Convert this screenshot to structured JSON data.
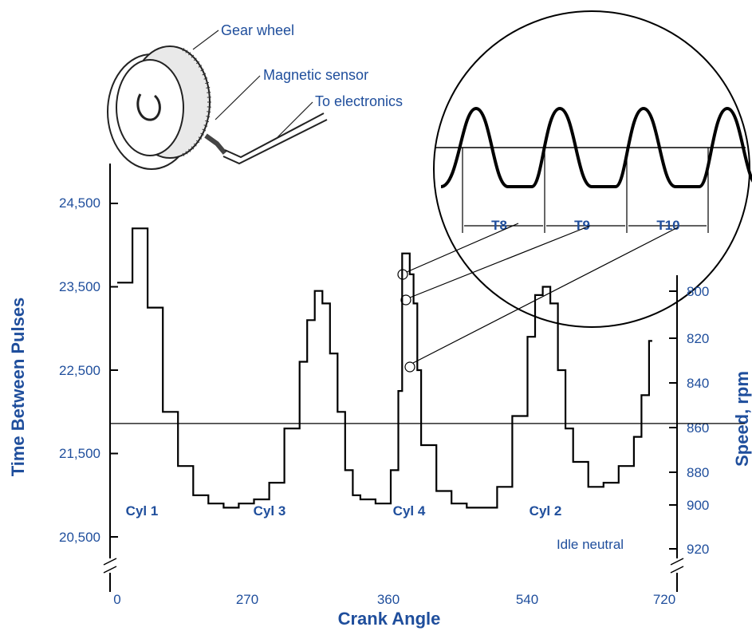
{
  "chart_data": {
    "type": "line",
    "xlabel": "Crank Angle",
    "ylabel": "Time Between Pulses",
    "y2label": "Speed, rpm",
    "x_ticks": [
      "0",
      "270",
      "360",
      "540",
      "720"
    ],
    "y_ticks": [
      "24,500",
      "23,500",
      "22,500",
      "21,500",
      "20,500"
    ],
    "y2_ticks": [
      "800",
      "820",
      "840",
      "860",
      "880",
      "900",
      "920"
    ],
    "cylinder_labels": [
      "Cyl 1",
      "Cyl 3",
      "Cyl 4",
      "Cyl 2"
    ],
    "note": "Idle neutral",
    "callouts": {
      "gear": "Gear wheel",
      "sensor": "Magnetic sensor",
      "electronics": "To electronics"
    },
    "pulse_labels": [
      "T8",
      "T9",
      "T10"
    ],
    "mean_line_y": 21860,
    "series": [
      {
        "x": [
          0,
          20,
          40,
          60,
          80,
          100,
          120,
          140,
          160,
          180,
          200,
          220,
          240,
          250,
          260,
          270,
          280,
          290,
          300,
          310,
          320,
          330,
          340,
          360,
          370,
          375,
          385,
          390,
          395,
          400,
          420,
          440,
          460,
          480,
          500,
          520,
          540,
          550,
          560,
          570,
          580,
          590,
          600,
          620,
          640,
          660,
          680,
          690,
          700
        ],
        "y": [
          23550,
          24200,
          23250,
          22000,
          21350,
          21000,
          20900,
          20850,
          20900,
          20950,
          21150,
          21800,
          22600,
          23100,
          23450,
          23300,
          22700,
          22000,
          21300,
          21000,
          20950,
          20950,
          20900,
          21300,
          22250,
          23900,
          23650,
          23300,
          22500,
          21600,
          21050,
          20900,
          20850,
          20850,
          21100,
          21950,
          22900,
          23400,
          23500,
          23300,
          22500,
          21800,
          21400,
          21100,
          21150,
          21350,
          21700,
          22200,
          22850
        ]
      }
    ],
    "xlim": [
      0,
      720
    ],
    "ylim": [
      20400,
      24900
    ],
    "y2lim": [
      795,
      925
    ],
    "grid": false
  },
  "colors": {
    "text": "#1f4e9c",
    "line": "#000000"
  }
}
